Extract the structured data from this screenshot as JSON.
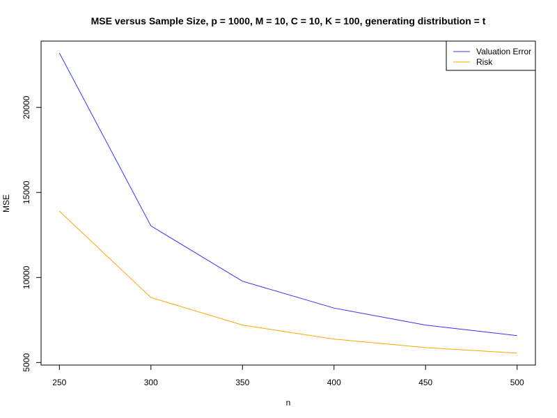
{
  "chart_data": {
    "type": "line",
    "title": "MSE versus Sample Size, p = 1000, M = 10, C = 10, K = 100, generating distribution = t",
    "xlabel": "n",
    "ylabel": "MSE",
    "x": [
      250,
      300,
      350,
      400,
      450,
      500
    ],
    "xticks": [
      250,
      300,
      350,
      400,
      450,
      500
    ],
    "yticks": [
      5000,
      10000,
      15000,
      20000
    ],
    "xlim": [
      240,
      510
    ],
    "ylim": [
      4850,
      23900
    ],
    "grid": false,
    "legend_position": "top-right",
    "series": [
      {
        "name": "Valuation Error",
        "color": "#3333ff",
        "values": [
          23200,
          13030,
          9780,
          8200,
          7200,
          6580
        ]
      },
      {
        "name": "Risk",
        "color": "#ffa500",
        "values": [
          13900,
          8820,
          7200,
          6380,
          5880,
          5550
        ]
      }
    ]
  }
}
